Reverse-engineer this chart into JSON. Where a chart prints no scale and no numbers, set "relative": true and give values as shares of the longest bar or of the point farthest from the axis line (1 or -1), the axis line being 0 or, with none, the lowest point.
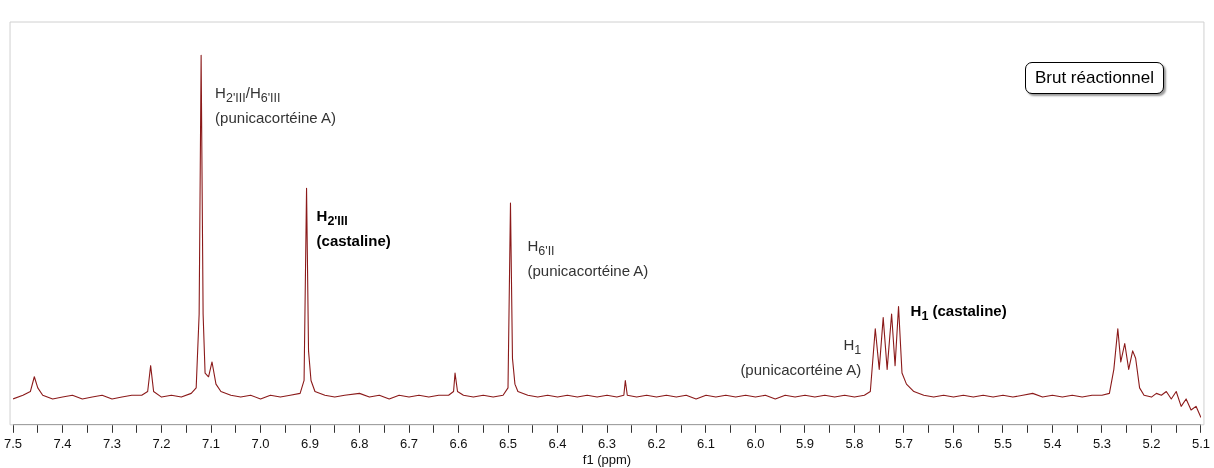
{
  "chart_data": {
    "type": "line",
    "relative": true,
    "xlabel": "f1 (ppm)",
    "xlim": [
      7.5,
      5.1
    ],
    "xticks": [
      7.5,
      {
        "value": 7.45,
        "label": null
      },
      7.4,
      {
        "value": 7.35,
        "label": null
      },
      7.3,
      {
        "value": 7.25,
        "label": null
      },
      7.2,
      {
        "value": 7.15,
        "label": null
      },
      7.1,
      {
        "value": 7.05,
        "label": null
      },
      {
        "value": 7.0,
        "label": "7.0"
      },
      {
        "value": 6.95,
        "label": null
      },
      6.9,
      {
        "value": 6.85,
        "label": null
      },
      6.8,
      {
        "value": 6.75,
        "label": null
      },
      6.7,
      {
        "value": 6.65,
        "label": null
      },
      6.6,
      {
        "value": 6.55,
        "label": null
      },
      6.5,
      {
        "value": 6.45,
        "label": null
      },
      6.4,
      {
        "value": 6.35,
        "label": null
      },
      6.3,
      {
        "value": 6.25,
        "label": null
      },
      6.2,
      {
        "value": 6.15,
        "label": null
      },
      6.1,
      {
        "value": 6.05,
        "label": null
      },
      {
        "value": 6.0,
        "label": "6.0"
      },
      {
        "value": 5.95,
        "label": null
      },
      5.9,
      {
        "value": 5.85,
        "label": null
      },
      5.8,
      {
        "value": 5.75,
        "label": null
      },
      5.7,
      {
        "value": 5.65,
        "label": null
      },
      5.6,
      {
        "value": 5.55,
        "label": null
      },
      5.5,
      {
        "value": 5.45,
        "label": null
      },
      5.4,
      {
        "value": 5.35,
        "label": null
      },
      5.3,
      {
        "value": 5.25,
        "label": null
      },
      5.2,
      {
        "value": 5.15,
        "label": null
      },
      5.1
    ],
    "grid": false,
    "legend": false,
    "marker": "none",
    "line_style": "solid",
    "series": [
      {
        "color": "#8b1a1a",
        "x": [
          7.5,
          7.48,
          7.465,
          7.457,
          7.45,
          7.44,
          7.42,
          7.4,
          7.38,
          7.36,
          7.34,
          7.32,
          7.3,
          7.28,
          7.26,
          7.24,
          7.228,
          7.222,
          7.216,
          7.2,
          7.18,
          7.16,
          7.14,
          7.13,
          7.124,
          7.12,
          7.116,
          7.112,
          7.105,
          7.098,
          7.09,
          7.08,
          7.06,
          7.04,
          7.02,
          7.0,
          6.98,
          6.96,
          6.94,
          6.92,
          6.912,
          6.907,
          6.903,
          6.898,
          6.89,
          6.87,
          6.85,
          6.83,
          6.8,
          6.78,
          6.76,
          6.74,
          6.72,
          6.7,
          6.68,
          6.66,
          6.64,
          6.62,
          6.61,
          6.607,
          6.602,
          6.59,
          6.57,
          6.55,
          6.53,
          6.51,
          6.5,
          6.495,
          6.491,
          6.486,
          6.48,
          6.46,
          6.44,
          6.42,
          6.4,
          6.38,
          6.36,
          6.34,
          6.32,
          6.3,
          6.28,
          6.266,
          6.263,
          6.259,
          6.24,
          6.22,
          6.2,
          6.18,
          6.16,
          6.14,
          6.12,
          6.1,
          6.08,
          6.06,
          6.04,
          6.02,
          6.0,
          5.98,
          5.96,
          5.94,
          5.92,
          5.9,
          5.88,
          5.86,
          5.84,
          5.82,
          5.8,
          5.78,
          5.768,
          5.758,
          5.75,
          5.742,
          5.734,
          5.725,
          5.718,
          5.711,
          5.704,
          5.695,
          5.68,
          5.66,
          5.64,
          5.62,
          5.6,
          5.58,
          5.56,
          5.54,
          5.52,
          5.5,
          5.48,
          5.46,
          5.44,
          5.42,
          5.4,
          5.38,
          5.36,
          5.34,
          5.32,
          5.3,
          5.285,
          5.276,
          5.268,
          5.262,
          5.254,
          5.246,
          5.238,
          5.232,
          5.224,
          5.215,
          5.2,
          5.19,
          5.18,
          5.17,
          5.16,
          5.15,
          5.14,
          5.13,
          5.12,
          5.11,
          5.1
        ],
        "values": [
          0.07,
          0.08,
          0.09,
          0.13,
          0.1,
          0.08,
          0.07,
          0.075,
          0.08,
          0.07,
          0.075,
          0.08,
          0.07,
          0.075,
          0.08,
          0.08,
          0.09,
          0.16,
          0.09,
          0.075,
          0.08,
          0.075,
          0.085,
          0.1,
          0.3,
          1.0,
          0.3,
          0.14,
          0.13,
          0.17,
          0.11,
          0.09,
          0.08,
          0.075,
          0.08,
          0.07,
          0.08,
          0.075,
          0.08,
          0.085,
          0.12,
          0.64,
          0.2,
          0.12,
          0.09,
          0.08,
          0.075,
          0.08,
          0.085,
          0.075,
          0.08,
          0.07,
          0.08,
          0.075,
          0.08,
          0.075,
          0.08,
          0.08,
          0.09,
          0.14,
          0.09,
          0.08,
          0.075,
          0.08,
          0.075,
          0.08,
          0.1,
          0.6,
          0.18,
          0.11,
          0.09,
          0.08,
          0.075,
          0.08,
          0.075,
          0.08,
          0.075,
          0.08,
          0.075,
          0.08,
          0.075,
          0.08,
          0.12,
          0.08,
          0.075,
          0.08,
          0.075,
          0.08,
          0.075,
          0.08,
          0.07,
          0.08,
          0.075,
          0.08,
          0.075,
          0.08,
          0.075,
          0.08,
          0.07,
          0.08,
          0.075,
          0.08,
          0.075,
          0.08,
          0.075,
          0.08,
          0.075,
          0.08,
          0.09,
          0.26,
          0.15,
          0.29,
          0.15,
          0.3,
          0.16,
          0.32,
          0.14,
          0.11,
          0.09,
          0.08,
          0.075,
          0.08,
          0.075,
          0.08,
          0.075,
          0.08,
          0.075,
          0.08,
          0.075,
          0.08,
          0.085,
          0.075,
          0.08,
          0.075,
          0.08,
          0.075,
          0.08,
          0.08,
          0.085,
          0.15,
          0.26,
          0.17,
          0.22,
          0.15,
          0.2,
          0.18,
          0.1,
          0.08,
          0.075,
          0.085,
          0.08,
          0.09,
          0.07,
          0.09,
          0.05,
          0.07,
          0.04,
          0.05,
          0.02
        ]
      }
    ],
    "annotations": [
      {
        "text": "H$_{2'III}$/H$_{6'III}$\n(punicacortéine A)",
        "x": 7.12,
        "y": 1.0
      },
      {
        "text": "H$_{2'III}$\n(castaline)",
        "x": 6.907,
        "y": 0.64
      },
      {
        "text": "H$_{6'II}$\n(punicacortéine A)",
        "x": 6.495,
        "y": 0.6
      },
      {
        "text": "H$_{1}$\n(punicacortéine A)",
        "x": 5.758,
        "y": 0.26
      },
      {
        "text": "H$_{1}$ (castaline)",
        "x": 5.711,
        "y": 0.32
      },
      "Brut réactionnel"
    ]
  }
}
